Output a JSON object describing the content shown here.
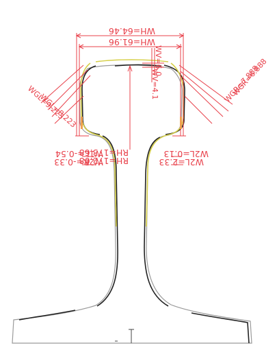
{
  "colors": {
    "background": "#ffffff",
    "measurement": "#e8404a",
    "profile_reference": "#222222",
    "profile_standard": "#9a9a9a",
    "profile_worn": "#d6cf48"
  },
  "labels": {
    "wh_outer": "WH=64.46",
    "wh_inner": "WH=61.96",
    "wv_a": "WV=6.0",
    "wv_b": "WV=4.1",
    "left_gauge_a": "WGL=9.223",
    "left_gauge_b": "WGL=8.223",
    "right_gauge_a": "WGR=6.888",
    "right_gauge_b": "WGR=7.888",
    "rh_a": "RH=173.68",
    "rh_b": "RH=172.08",
    "w1l": "W1L=-0.54",
    "w2r": "W2R=-0.33",
    "w2l": "W2L=0.13",
    "w2l_b": "W2L=2.33"
  }
}
